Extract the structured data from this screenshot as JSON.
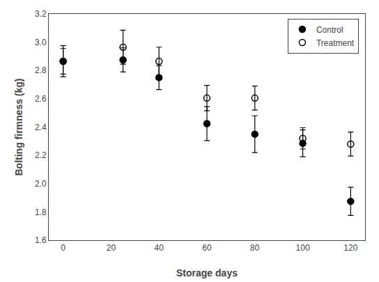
{
  "chart_data": {
    "type": "scatter",
    "x_label": "Storage days",
    "y_label": "Bolting firmness (kg)",
    "x": [
      0,
      25,
      40,
      60,
      80,
      100,
      120
    ],
    "series": [
      {
        "name": "Control",
        "color": "black",
        "marker": "circle",
        "values": [
          2.865,
          2.875,
          2.75,
          2.425,
          2.35,
          2.285,
          1.875
        ],
        "error": [
          0.11,
          0.085,
          0.085,
          0.12,
          0.13,
          0.095,
          0.1
        ]
      },
      {
        "name": "Treatment",
        "color": "black",
        "marker": "circle-open",
        "values": [
          2.865,
          2.965,
          2.865,
          2.605,
          2.605,
          2.32,
          2.28
        ],
        "error": [
          0.09,
          0.12,
          0.1,
          0.09,
          0.085,
          0.075,
          0.085
        ]
      }
    ],
    "xlim": [
      -6,
      126
    ],
    "xticks": [
      0,
      20,
      40,
      60,
      80,
      100,
      120
    ],
    "ylim": [
      1.6,
      3.2
    ],
    "yticks": [
      1.6,
      1.8,
      {
        "value": 2.0,
        "label": "2.0"
      },
      2.2,
      2.4,
      2.6,
      2.8,
      {
        "value": 3.0,
        "label": "3.0"
      },
      3.2
    ],
    "grid": false,
    "legend": "upper right"
  }
}
